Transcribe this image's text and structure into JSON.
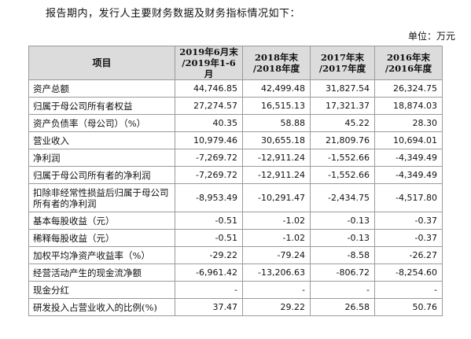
{
  "intro": "报告期内，发行人主要财务数据及财务指标情况如下：",
  "unit": "单位：万元",
  "columns": [
    {
      "line1": "项目",
      "line2": ""
    },
    {
      "line1": "2019年6月末",
      "line2": "/2019年1-6月"
    },
    {
      "line1": "2018年末",
      "line2": "/2018年度"
    },
    {
      "line1": "2017年末",
      "line2": "/2017年度"
    },
    {
      "line1": "2016年末",
      "line2": "/2016年度"
    }
  ],
  "rows": [
    {
      "label": "资产总额",
      "values": [
        "44,746.85",
        "42,499.48",
        "31,827.54",
        "26,324.75"
      ]
    },
    {
      "label": "归属于母公司所有者权益",
      "values": [
        "27,274.57",
        "16,515.13",
        "17,321.37",
        "18,874.03"
      ]
    },
    {
      "label": "资产负债率（母公司）（%）",
      "values": [
        "40.35",
        "58.88",
        "45.22",
        "28.30"
      ]
    },
    {
      "label": "营业收入",
      "values": [
        "10,979.46",
        "30,655.18",
        "21,809.76",
        "10,694.01"
      ]
    },
    {
      "label": "净利润",
      "values": [
        "-7,269.72",
        "-12,911.24",
        "-1,552.66",
        "-4,349.49"
      ]
    },
    {
      "label": "归属于母公司所有者的净利润",
      "values": [
        "-7,269.72",
        "-12,911.24",
        "-1,552.66",
        "-4,349.49"
      ]
    },
    {
      "label": "扣除非经常性损益后归属于母公司所有者的净利润",
      "values": [
        "-8,953.49",
        "-10,291.47",
        "-2,434.75",
        "-4,517.80"
      ]
    },
    {
      "label": "基本每股收益（元）",
      "values": [
        "-0.51",
        "-1.02",
        "-0.13",
        "-0.37"
      ]
    },
    {
      "label": "稀释每股收益（元）",
      "values": [
        "-0.51",
        "-1.02",
        "-0.13",
        "-0.37"
      ]
    },
    {
      "label": "加权平均净资产收益率（%）",
      "values": [
        "-29.22",
        "-79.24",
        "-8.58",
        "-26.27"
      ]
    },
    {
      "label": "经营活动产生的现金流净额",
      "values": [
        "-6,961.42",
        "-13,206.63",
        "-806.72",
        "-8,254.60"
      ]
    },
    {
      "label": "现金分红",
      "values": [
        "-",
        "-",
        "-",
        "-"
      ]
    },
    {
      "label": "研发投入占营业收入的比例(%)",
      "values": [
        "37.47",
        "29.22",
        "26.58",
        "50.76"
      ]
    }
  ]
}
